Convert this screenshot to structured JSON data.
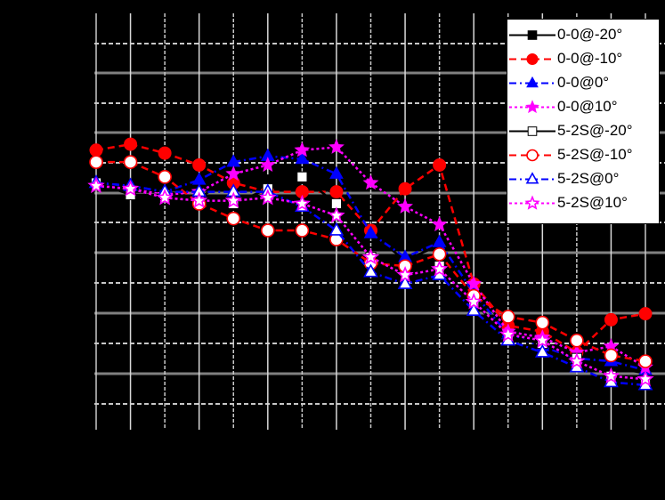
{
  "chart_data": {
    "type": "line",
    "title": "",
    "xlabel": "",
    "ylabel": "",
    "x": [
      1,
      2,
      3,
      4,
      5,
      6,
      7,
      8,
      9,
      10,
      11,
      12,
      13,
      14,
      15,
      16,
      17
    ],
    "ylim": [
      0,
      14
    ],
    "grid": true,
    "legend_position": "upper right",
    "y_units_note": "values in gridline units (axis tick labels not visible)",
    "series": [
      {
        "name": "0-0@-20°",
        "color": "#000000",
        "line": "solid",
        "marker": "square",
        "filled": true,
        "values": [
          8.3,
          8.0,
          8.0,
          7.8,
          8.5,
          8.4,
          8.5,
          7.9,
          6.6,
          5.7,
          6.2,
          4.7,
          3.4,
          3.2,
          2.6,
          2.1,
          1.9
        ]
      },
      {
        "name": "0-0@-10°",
        "color": "#ff0000",
        "line": "dashed",
        "marker": "circle",
        "filled": true,
        "values": [
          9.4,
          9.6,
          9.3,
          8.9,
          8.3,
          8.0,
          8.0,
          8.0,
          6.7,
          8.1,
          8.9,
          4.9,
          3.5,
          3.3,
          2.6,
          3.7,
          3.9
        ]
      },
      {
        "name": "0-0@0°",
        "color": "#0000ff",
        "line": "dashdot",
        "marker": "triangle",
        "filled": true,
        "values": [
          8.3,
          8.2,
          8.0,
          8.4,
          9.0,
          9.2,
          9.1,
          8.6,
          6.6,
          5.8,
          6.3,
          4.6,
          3.2,
          2.8,
          2.4,
          2.3,
          2.0
        ]
      },
      {
        "name": "0-0@10°",
        "color": "#ff00ff",
        "line": "dotted",
        "marker": "star",
        "filled": true,
        "values": [
          8.2,
          8.1,
          7.9,
          8.0,
          8.6,
          8.9,
          9.4,
          9.5,
          8.3,
          7.5,
          6.9,
          4.9,
          3.3,
          3.1,
          2.6,
          2.8,
          2.1
        ]
      },
      {
        "name": "5-2S@-20°",
        "color": "#000000",
        "line": "solid",
        "marker": "square",
        "filled": false,
        "values": [
          8.3,
          7.9,
          7.9,
          7.6,
          7.6,
          8.1,
          8.5,
          7.6,
          5.8,
          5.4,
          5.5,
          4.3,
          3.1,
          2.9,
          2.4,
          1.8,
          1.6
        ]
      },
      {
        "name": "5-2S@-10°",
        "color": "#ff0000",
        "line": "dashed",
        "marker": "circle",
        "filled": false,
        "values": [
          9.0,
          9.0,
          8.5,
          7.6,
          7.1,
          6.7,
          6.7,
          6.4,
          5.6,
          5.5,
          5.9,
          4.5,
          3.8,
          3.6,
          3.0,
          2.5,
          2.3
        ]
      },
      {
        "name": "5-2S@0°",
        "color": "#0000ff",
        "line": "dashdot",
        "marker": "triangle",
        "filled": false,
        "values": [
          8.3,
          8.2,
          8.0,
          8.0,
          8.0,
          8.0,
          7.5,
          6.7,
          5.3,
          4.9,
          5.2,
          4.0,
          3.0,
          2.6,
          2.1,
          1.6,
          1.5
        ]
      },
      {
        "name": "5-2S@10°",
        "color": "#ff00ff",
        "line": "dotted",
        "marker": "star",
        "filled": false,
        "values": [
          8.2,
          8.1,
          7.8,
          7.7,
          7.7,
          7.8,
          7.6,
          7.2,
          5.8,
          5.2,
          5.4,
          4.3,
          3.2,
          3.0,
          2.3,
          1.8,
          1.7
        ]
      }
    ]
  },
  "legend": {
    "items": [
      {
        "label": "0-0@-20°"
      },
      {
        "label": "0-0@-10°"
      },
      {
        "label": "0-0@0°"
      },
      {
        "label": "0-0@10°"
      },
      {
        "label": "5-2S@-20°"
      },
      {
        "label": "5-2S@-10°"
      },
      {
        "label": "5-2S@0°"
      },
      {
        "label": "5-2S@10°"
      }
    ]
  }
}
